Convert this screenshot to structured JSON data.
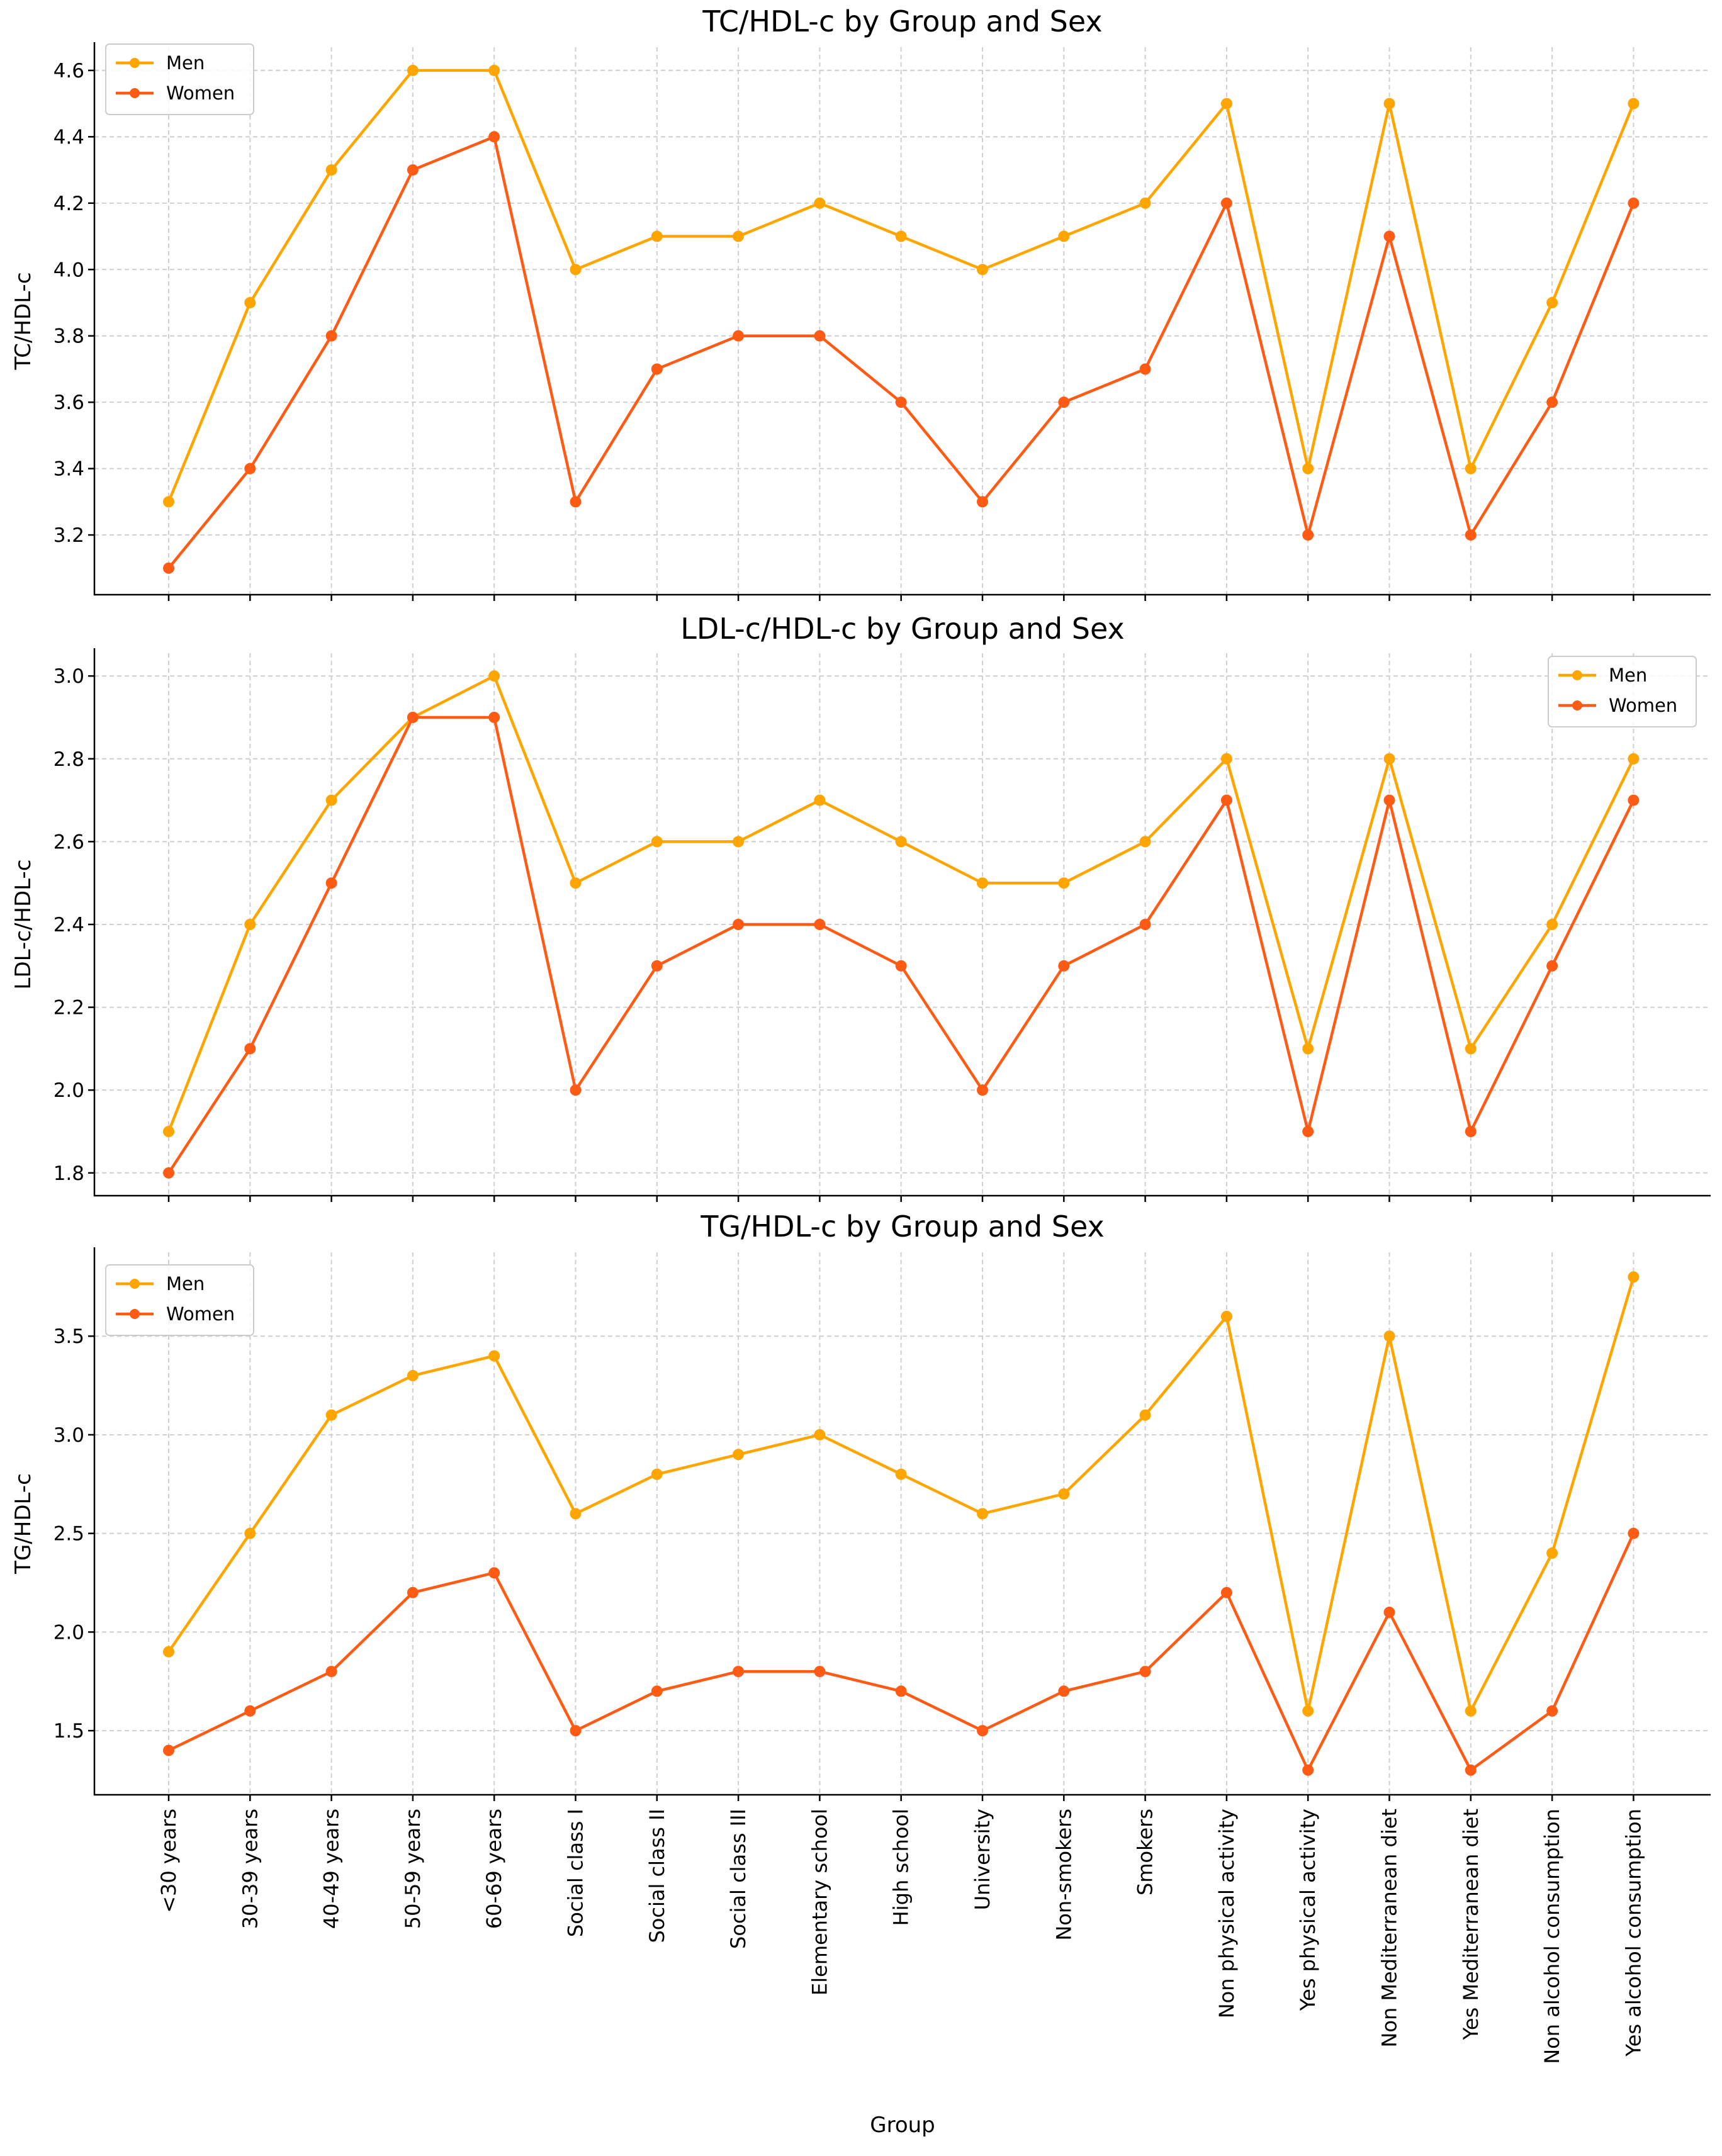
{
  "chart_data": [
    {
      "type": "line",
      "title": "TC/HDL-c by Group and Sex",
      "xlabel": "",
      "ylabel": "TC/HDL-c",
      "ylim": [
        3.02,
        4.67
      ],
      "yticks": [
        3.2,
        3.4,
        3.6,
        3.8,
        4.0,
        4.2,
        4.4,
        4.6
      ],
      "yticks_text": [
        "3.2",
        "3.4",
        "3.6",
        "3.8",
        "4.0",
        "4.2",
        "4.4",
        "4.6"
      ],
      "legend": "top-left",
      "grid": true,
      "series": [
        {
          "name": "Men",
          "color": "#ffa500",
          "values": [
            3.3,
            3.9,
            4.3,
            4.6,
            4.6,
            4.0,
            4.1,
            4.1,
            4.2,
            4.1,
            4.0,
            4.1,
            4.2,
            4.5,
            3.4,
            4.5,
            3.4,
            3.9,
            4.5
          ]
        },
        {
          "name": "Women",
          "color": "#ff5b14",
          "values": [
            3.1,
            3.4,
            3.8,
            4.3,
            4.4,
            3.3,
            3.7,
            3.8,
            3.8,
            3.6,
            3.3,
            3.6,
            3.7,
            4.2,
            3.2,
            4.1,
            3.2,
            3.6,
            4.2
          ]
        }
      ]
    },
    {
      "type": "line",
      "title": "LDL-c/HDL-c by Group and Sex",
      "xlabel": "",
      "ylabel": "LDL-c/HDL-c",
      "ylim": [
        1.745,
        3.055
      ],
      "yticks": [
        1.8,
        2.0,
        2.2,
        2.4,
        2.6,
        2.8,
        3.0
      ],
      "yticks_text": [
        "1.8",
        "2.0",
        "2.2",
        "2.4",
        "2.6",
        "2.8",
        "3.0"
      ],
      "legend": "top-right",
      "grid": true,
      "series": [
        {
          "name": "Men",
          "color": "#ffa500",
          "values": [
            1.9,
            2.4,
            2.7,
            2.9,
            3.0,
            2.5,
            2.6,
            2.6,
            2.7,
            2.6,
            2.5,
            2.5,
            2.6,
            2.8,
            2.1,
            2.8,
            2.1,
            2.4,
            2.8
          ]
        },
        {
          "name": "Women",
          "color": "#ff5b14",
          "values": [
            1.8,
            2.1,
            2.5,
            2.9,
            2.9,
            2.0,
            2.3,
            2.4,
            2.4,
            2.3,
            2.0,
            2.3,
            2.4,
            2.7,
            1.9,
            2.7,
            1.9,
            2.3,
            2.7
          ]
        }
      ]
    },
    {
      "type": "line",
      "title": "TG/HDL-c by Group and Sex",
      "xlabel": "Group",
      "ylabel": "TG/HDL-c",
      "ylim": [
        1.175,
        3.925
      ],
      "yticks": [
        1.5,
        2.0,
        2.5,
        3.0,
        3.5
      ],
      "yticks_text": [
        "1.5",
        "2.0",
        "2.5",
        "3.0",
        "3.5"
      ],
      "legend": "top-left",
      "grid": true,
      "series": [
        {
          "name": "Men",
          "color": "#ffa500",
          "values": [
            1.9,
            2.5,
            3.1,
            3.3,
            3.4,
            2.6,
            2.8,
            2.9,
            3.0,
            2.8,
            2.6,
            2.7,
            3.1,
            3.6,
            1.6,
            3.5,
            1.6,
            2.4,
            3.8
          ]
        },
        {
          "name": "Women",
          "color": "#ff5b14",
          "values": [
            1.4,
            1.6,
            1.8,
            2.2,
            2.3,
            1.5,
            1.7,
            1.8,
            1.8,
            1.7,
            1.5,
            1.7,
            1.8,
            2.2,
            1.3,
            2.1,
            1.3,
            1.6,
            2.5
          ]
        }
      ]
    }
  ],
  "categories": [
    "<30 years",
    "30-39 years",
    "40-49 years",
    "50-59 years",
    "60-69 years",
    "Social class I",
    "Social class II",
    "Social class III",
    "Elementary school",
    "High school",
    "University",
    "Non-smokers",
    "Smokers",
    "Non physical activity",
    "Yes physical activity",
    "Non Mediterranean diet",
    "Yes Mediterranean diet",
    "Non alcohol consumption",
    "Yes alcohol consumption"
  ]
}
